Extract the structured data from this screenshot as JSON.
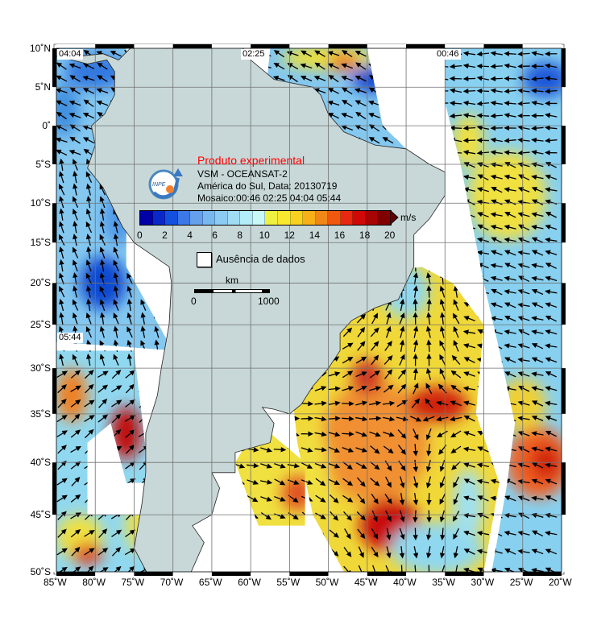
{
  "legend": {
    "title": "Produto experimental",
    "line1": "VSM - OCEANSAT-2",
    "line2": "América do Sul, Data: 20130719",
    "line3": "Mosaico:00:46 02:25 04:04 05:44",
    "logo_text": "INPE",
    "units": "m/s",
    "ticks": [
      "0",
      "2",
      "4",
      "6",
      "8",
      "10",
      "12",
      "14",
      "16",
      "18",
      "20"
    ],
    "colorscale": [
      "#0000a8",
      "#0a28c8",
      "#1450e0",
      "#3c78e8",
      "#64a0ec",
      "#78b8f0",
      "#8cccf4",
      "#a0dcf4",
      "#b4ecf8",
      "#c8f8f8",
      "#f0f040",
      "#f8e830",
      "#f8d020",
      "#f8b018",
      "#f08818",
      "#f05810",
      "#e82810",
      "#d00808",
      "#a80404",
      "#800000"
    ],
    "no_data_label": "Ausência de dados",
    "scale_unit": "km",
    "scale_start": "0",
    "scale_end": "1000"
  },
  "swath_times": [
    "04:04",
    "02:25",
    "00:46",
    "05:44"
  ],
  "axes": {
    "lat_labels": [
      "10˚N",
      "5˚N",
      "0˚",
      "5˚S",
      "10˚S",
      "15˚S",
      "20˚S",
      "25˚S",
      "30˚S",
      "35˚S",
      "40˚S",
      "45˚S",
      "50˚S"
    ],
    "lon_labels": [
      "85˚W",
      "80˚W",
      "75˚W",
      "70˚W",
      "65˚W",
      "60˚W",
      "55˚W",
      "50˚W",
      "45˚W",
      "40˚W",
      "35˚W",
      "30˚W",
      "25˚W",
      "20˚W"
    ]
  },
  "colors": {
    "land": "#c8d8d8",
    "grid": "#707070",
    "no_data": "#ffffff"
  }
}
